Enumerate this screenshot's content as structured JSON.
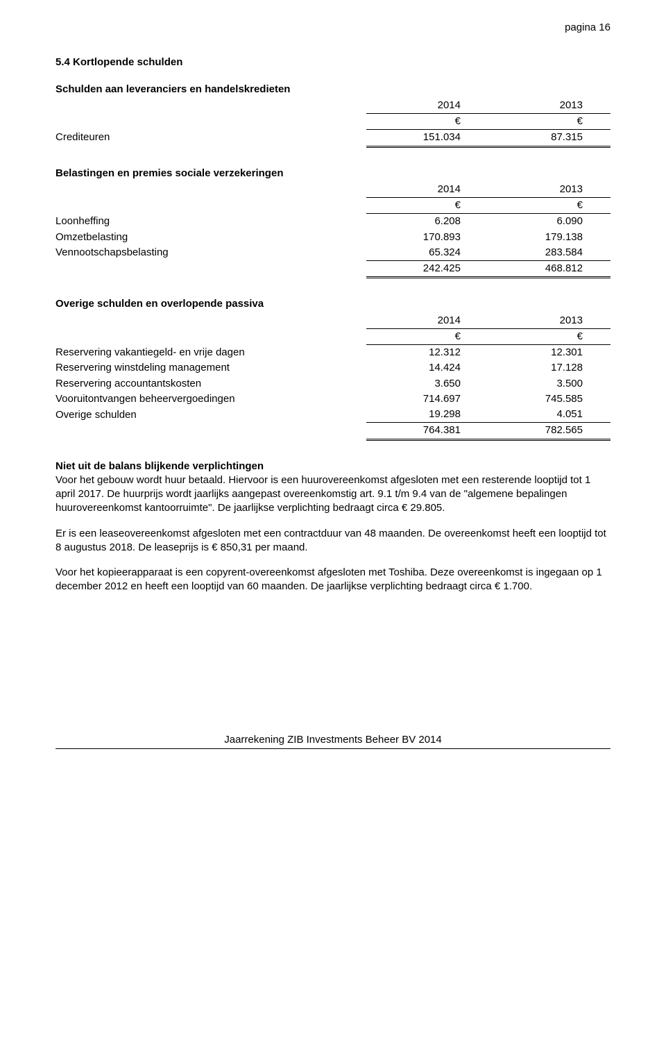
{
  "page_header": "pagina 16",
  "section_title": "5.4 Kortlopende schulden",
  "table1": {
    "title": "Schulden aan leveranciers en handelskredieten",
    "years": [
      "2014",
      "2013"
    ],
    "currency": [
      "€",
      "€"
    ],
    "rows": [
      {
        "label": "Crediteuren",
        "v1": "151.034",
        "v2": "87.315"
      }
    ]
  },
  "table2": {
    "title": "Belastingen en premies sociale verzekeringen",
    "years": [
      "2014",
      "2013"
    ],
    "currency": [
      "€",
      "€"
    ],
    "rows": [
      {
        "label": "Loonheffing",
        "v1": "6.208",
        "v2": "6.090"
      },
      {
        "label": "Omzetbelasting",
        "v1": "170.893",
        "v2": "179.138"
      },
      {
        "label": "Vennootschapsbelasting",
        "v1": "65.324",
        "v2": "283.584"
      }
    ],
    "total": {
      "v1": "242.425",
      "v2": "468.812"
    }
  },
  "table3": {
    "title": "Overige schulden en overlopende passiva",
    "years": [
      "2014",
      "2013"
    ],
    "currency": [
      "€",
      "€"
    ],
    "rows": [
      {
        "label": "Reservering vakantiegeld- en vrije dagen",
        "v1": "12.312",
        "v2": "12.301"
      },
      {
        "label": "Reservering winstdeling management",
        "v1": "14.424",
        "v2": "17.128"
      },
      {
        "label": "Reservering accountantskosten",
        "v1": "3.650",
        "v2": "3.500"
      },
      {
        "label": "Vooruitontvangen beheervergoedingen",
        "v1": "714.697",
        "v2": "745.585"
      },
      {
        "label": "Overige schulden",
        "v1": "19.298",
        "v2": "4.051"
      }
    ],
    "total": {
      "v1": "764.381",
      "v2": "782.565"
    }
  },
  "commitments": {
    "title": "Niet uit de balans blijkende verplichtingen",
    "p1": "Voor het gebouw wordt huur betaald. Hiervoor is een huurovereenkomst afgesloten met een resterende looptijd tot 1 april 2017. De huurprijs wordt jaarlijks aangepast overeenkomstig art. 9.1 t/m 9.4 van de \"algemene bepalingen huurovereenkomst kantoorruimte\". De jaarlijkse verplichting bedraagt circa € 29.805.",
    "p2": "Er is een leaseovereenkomst afgesloten met een contractduur van 48 maanden. De overeenkomst heeft een looptijd tot 8 augustus 2018. De leaseprijs is € 850,31 per maand.",
    "p3": "Voor het kopieerapparaat is een copyrent-overeenkomst afgesloten met Toshiba. Deze overeenkomst is ingegaan op 1 december 2012 en heeft een looptijd van 60 maanden. De jaarlijkse verplichting bedraagt circa € 1.700."
  },
  "footer": "Jaarrekening ZIB Investments Beheer BV 2014"
}
